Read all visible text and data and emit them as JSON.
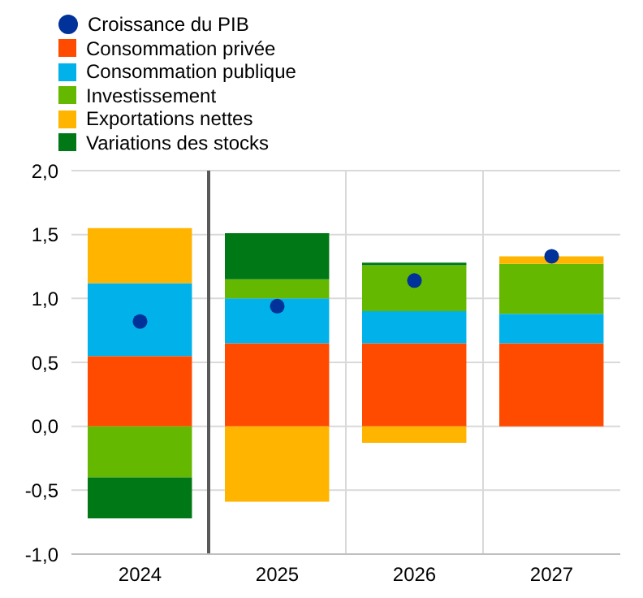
{
  "chart_data": {
    "type": "bar",
    "stacked": true,
    "x": [
      2024,
      2025,
      2026,
      2027
    ],
    "xlim": [
      2023.5,
      2027.5
    ],
    "xticks": [
      2024,
      2025,
      2026,
      2027
    ],
    "ylim": [
      -1,
      2
    ],
    "yticks": [
      {
        "value": -1,
        "label": "-1,0"
      },
      {
        "value": -0.5,
        "label": "-0,5"
      },
      {
        "value": 0,
        "label": "0,0"
      },
      {
        "value": 0.5,
        "label": "0,5"
      },
      {
        "value": 1,
        "label": "1,0"
      },
      {
        "value": 1.5,
        "label": "1,5"
      },
      {
        "value": 2,
        "label": "2,0"
      }
    ],
    "grid": "y",
    "legend": "top",
    "marker": "circle",
    "series": [
      {
        "name": "Croissance du PIB",
        "type": "scatter",
        "color": "#003299",
        "values": [
          0.82,
          0.94,
          1.14,
          1.33
        ]
      },
      {
        "name": "Consommation privée",
        "color": "#ff4b00",
        "values": [
          0.55,
          0.65,
          0.65,
          0.65
        ]
      },
      {
        "name": "Consommation publique",
        "color": "#00b1ea",
        "values": [
          0.57,
          0.35,
          0.25,
          0.23
        ]
      },
      {
        "name": "Investissement",
        "color": "#65b800",
        "values": [
          -0.4,
          0.15,
          0.36,
          0.39
        ]
      },
      {
        "name": "Exportations nettes",
        "color": "#ffb400",
        "values": [
          0.43,
          -0.59,
          -0.13,
          0.06
        ]
      },
      {
        "name": "Variations des stocks",
        "color": "#007816",
        "values": [
          -0.32,
          0.36,
          0.02,
          0
        ]
      }
    ],
    "ref_lines": [
      {
        "axis": "x",
        "value": 2024.5,
        "color": "#595959"
      },
      {
        "axis": "x",
        "value": 2025.5,
        "color": "#d9d9d9"
      },
      {
        "axis": "x",
        "value": 2026.5,
        "color": "#d9d9d9"
      }
    ]
  }
}
